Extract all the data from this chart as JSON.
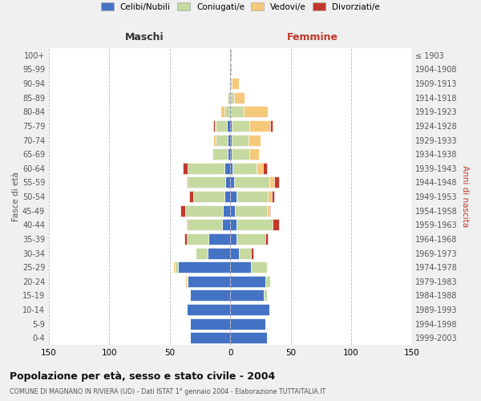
{
  "age_groups": [
    "0-4",
    "5-9",
    "10-14",
    "15-19",
    "20-24",
    "25-29",
    "30-34",
    "35-39",
    "40-44",
    "45-49",
    "50-54",
    "55-59",
    "60-64",
    "65-69",
    "70-74",
    "75-79",
    "80-84",
    "85-89",
    "90-94",
    "95-99",
    "100+"
  ],
  "birth_years": [
    "1999-2003",
    "1994-1998",
    "1989-1993",
    "1984-1988",
    "1979-1983",
    "1974-1978",
    "1969-1973",
    "1964-1968",
    "1959-1963",
    "1954-1958",
    "1949-1953",
    "1944-1948",
    "1939-1943",
    "1934-1938",
    "1929-1933",
    "1924-1928",
    "1919-1923",
    "1914-1918",
    "1909-1913",
    "1904-1908",
    "≤ 1903"
  ],
  "colors": {
    "celibe": "#4472C4",
    "coniugato": "#c5d9a0",
    "vedovo": "#f5c97a",
    "divorziato": "#c0392b"
  },
  "males": {
    "celibe": [
      33,
      33,
      36,
      33,
      35,
      43,
      19,
      18,
      7,
      6,
      5,
      4,
      5,
      2,
      2,
      3,
      0,
      0,
      0,
      0,
      0
    ],
    "coniugato": [
      0,
      0,
      0,
      0,
      1,
      3,
      10,
      18,
      28,
      31,
      26,
      31,
      30,
      13,
      10,
      9,
      5,
      2,
      1,
      0,
      0
    ],
    "vedovo": [
      0,
      0,
      0,
      0,
      1,
      1,
      0,
      0,
      0,
      0,
      0,
      0,
      0,
      0,
      2,
      1,
      3,
      1,
      0,
      0,
      0
    ],
    "divorziato": [
      0,
      0,
      0,
      0,
      0,
      0,
      0,
      2,
      1,
      4,
      3,
      1,
      4,
      0,
      0,
      1,
      0,
      0,
      0,
      0,
      0
    ]
  },
  "females": {
    "nubile": [
      30,
      29,
      32,
      28,
      29,
      17,
      7,
      5,
      5,
      4,
      5,
      3,
      2,
      1,
      1,
      1,
      0,
      0,
      0,
      0,
      0
    ],
    "coniugata": [
      0,
      0,
      0,
      2,
      4,
      13,
      10,
      24,
      30,
      26,
      26,
      29,
      20,
      15,
      14,
      15,
      11,
      3,
      1,
      0,
      0
    ],
    "vedova": [
      0,
      0,
      0,
      0,
      0,
      0,
      0,
      0,
      0,
      2,
      3,
      4,
      5,
      8,
      10,
      17,
      20,
      9,
      6,
      1,
      1
    ],
    "divorziata": [
      0,
      0,
      0,
      0,
      0,
      0,
      2,
      2,
      5,
      1,
      2,
      4,
      3,
      0,
      0,
      2,
      0,
      0,
      0,
      0,
      0
    ]
  },
  "xlim": 150,
  "title_main": "Popolazione per età, sesso e stato civile - 2004",
  "title_sub": "COMUNE DI MAGNANO IN RIVIERA (UD) - Dati ISTAT 1° gennaio 2004 - Elaborazione TUTTAITALIA.IT",
  "legend_labels": [
    "Celibi/Nubili",
    "Coniugati/e",
    "Vedovi/e",
    "Divorziati/e"
  ],
  "bg_color": "#f0f0f0",
  "plot_bg_color": "#ffffff",
  "grid_color": "#bbbbbb"
}
